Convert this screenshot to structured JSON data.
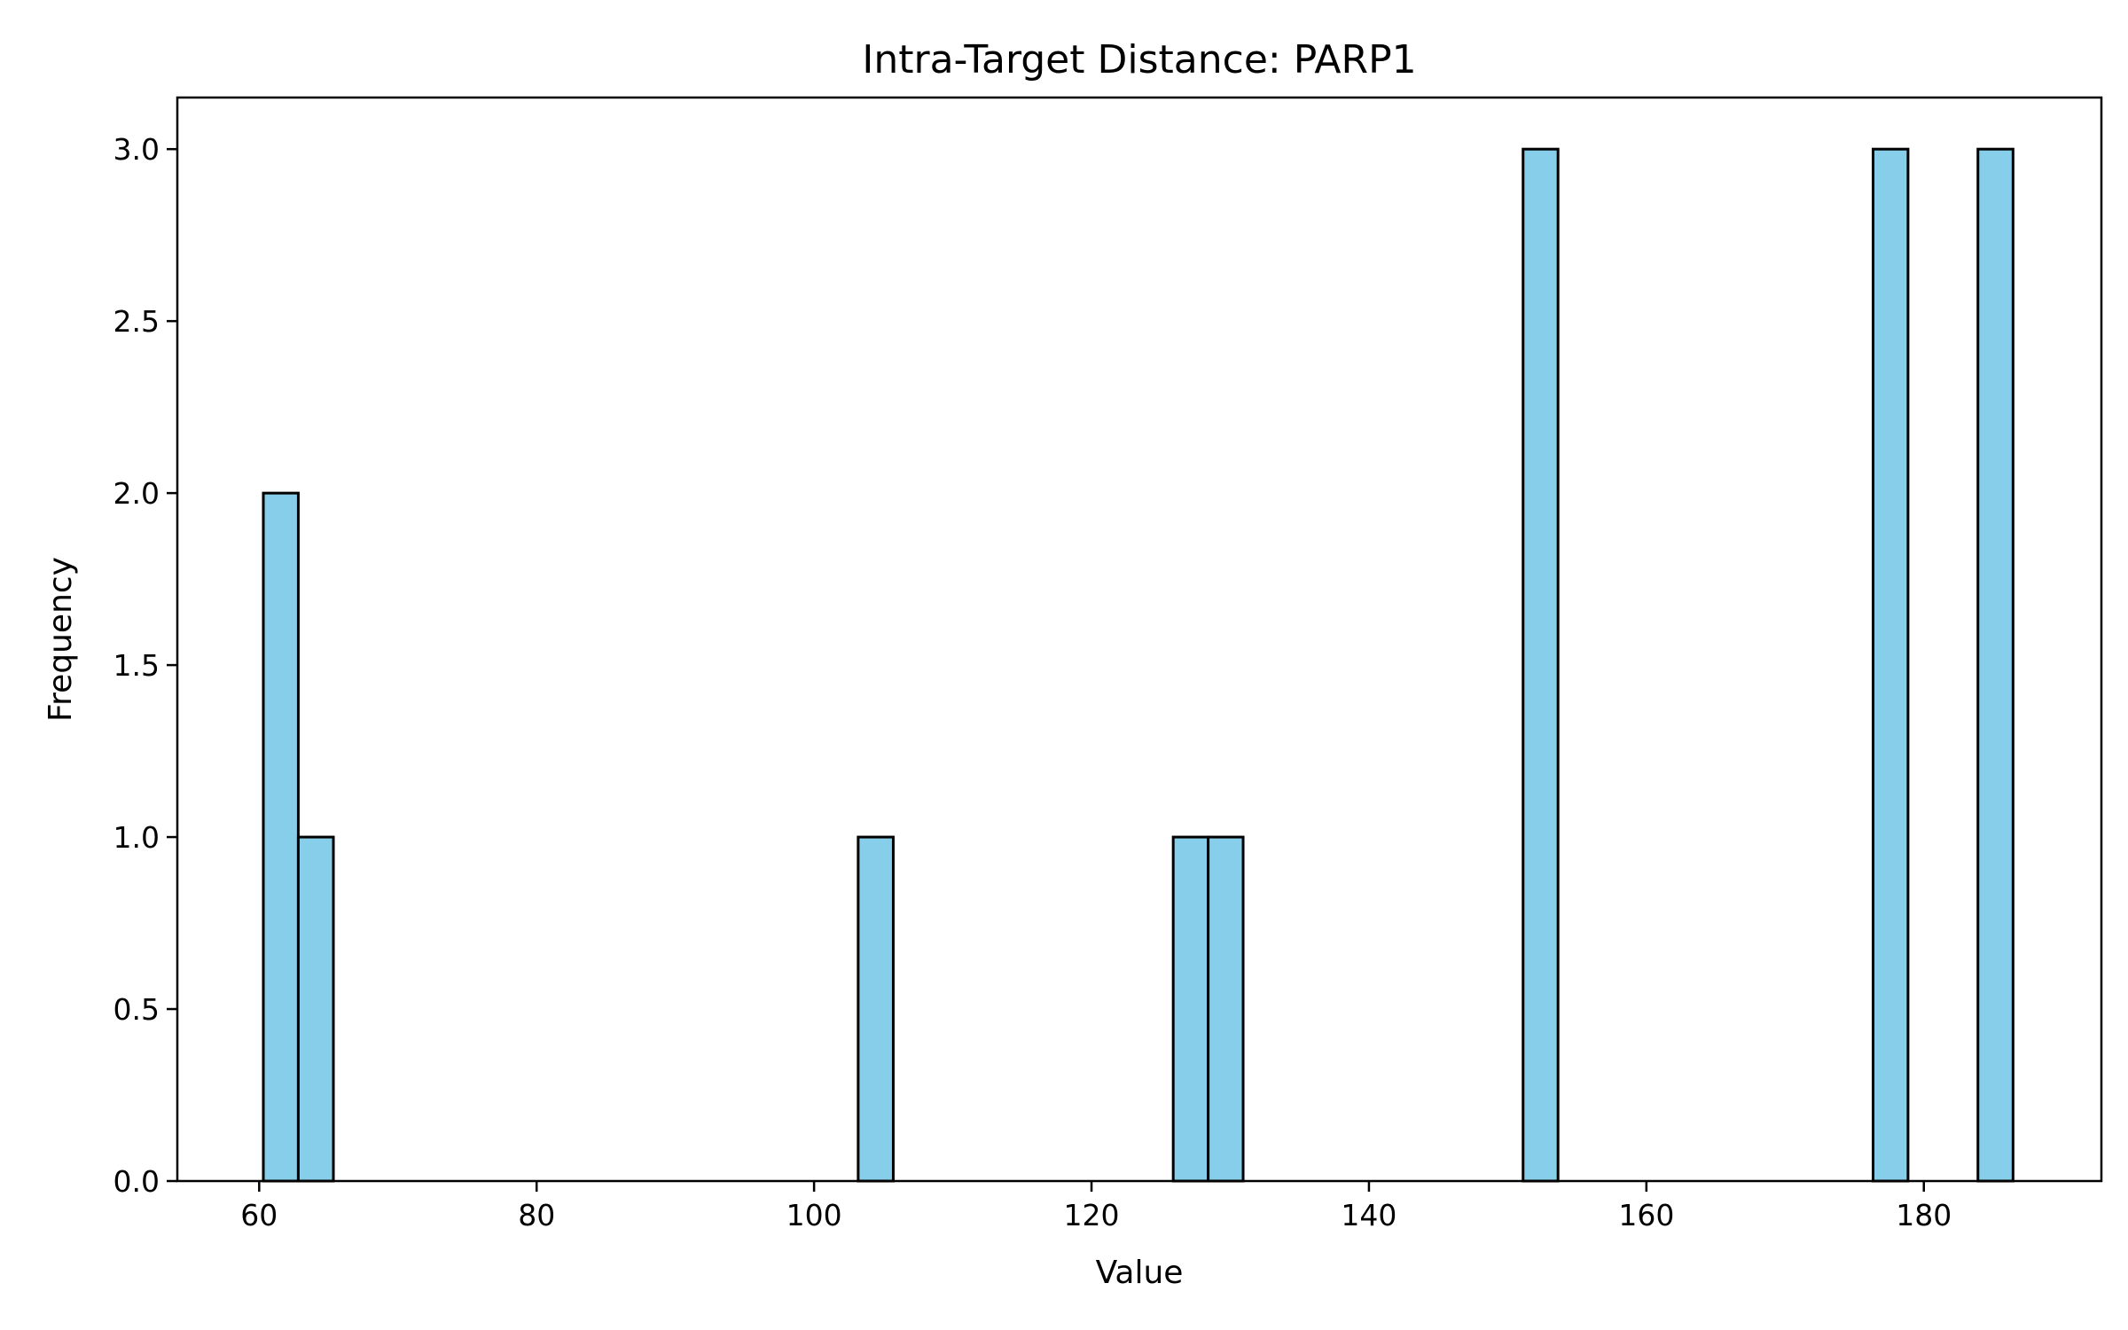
{
  "chart_data": {
    "type": "bar",
    "title": "Intra-Target Distance: PARP1",
    "xlabel": "Value",
    "ylabel": "Frequency",
    "xlim": [
      54.1,
      192.8
    ],
    "ylim": [
      0,
      3.15
    ],
    "xticks": [
      60,
      80,
      100,
      120,
      140,
      160,
      180
    ],
    "xtick_labels": [
      "60",
      "80",
      "100",
      "120",
      "140",
      "160",
      "180"
    ],
    "yticks": [
      0,
      0.5,
      1.0,
      1.5,
      2.0,
      2.5,
      3.0
    ],
    "ytick_labels": [
      "0.0",
      "0.5",
      "1.0",
      "1.5",
      "2.0",
      "2.5",
      "3.0"
    ],
    "bin_edges": [
      60.3,
      62.82,
      65.35,
      67.87,
      70.39,
      72.91,
      75.44,
      77.96,
      80.48,
      83.0,
      85.53,
      88.05,
      90.57,
      93.09,
      95.62,
      98.14,
      100.66,
      103.18,
      105.71,
      108.23,
      110.75,
      113.27,
      115.8,
      118.32,
      120.84,
      123.36,
      125.89,
      128.41,
      130.93,
      133.45,
      135.98,
      138.5,
      141.02,
      143.54,
      146.07,
      148.59,
      151.11,
      153.63,
      156.16,
      158.68,
      161.2,
      163.72,
      166.25,
      168.77,
      171.29,
      173.81,
      176.34,
      178.86,
      181.38,
      183.9,
      186.43
    ],
    "counts": [
      2,
      1,
      0,
      0,
      0,
      0,
      0,
      0,
      0,
      0,
      0,
      0,
      0,
      0,
      0,
      0,
      0,
      1,
      0,
      0,
      0,
      0,
      0,
      0,
      0,
      0,
      1,
      1,
      0,
      0,
      0,
      0,
      0,
      0,
      0,
      0,
      3,
      0,
      0,
      0,
      0,
      0,
      0,
      0,
      0,
      0,
      3,
      0,
      0,
      3
    ],
    "colors": {
      "bar_fill": "#87ceeb",
      "bar_edge": "#000000"
    },
    "grid": false,
    "legend": "none"
  }
}
